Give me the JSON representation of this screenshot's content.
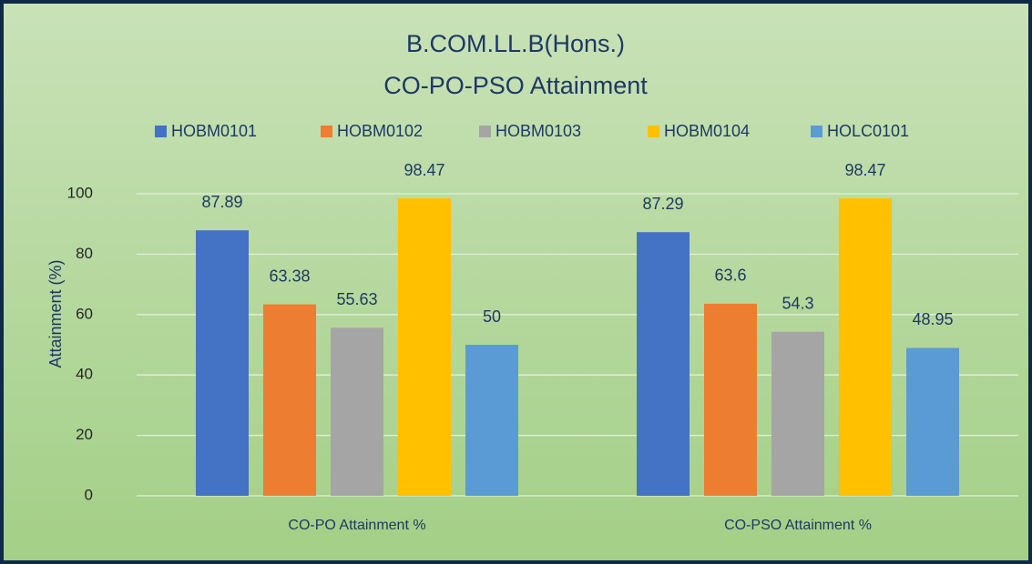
{
  "chart_data": {
    "type": "bar",
    "title": "B.COM.LL.B(Hons.)",
    "subtitle": "CO-PO-PSO Attainment",
    "y_label": "Attainment (%)",
    "categories": [
      "CO-PO Attainment %",
      "CO-PSO Attainment %"
    ],
    "series": [
      {
        "name": "HOBM0101",
        "color": "#4472c4",
        "values": [
          87.89,
          87.29
        ]
      },
      {
        "name": "HOBM0102",
        "color": "#ed7d31",
        "values": [
          63.38,
          63.6
        ]
      },
      {
        "name": "HOBM0103",
        "color": "#a5a5a5",
        "values": [
          55.63,
          54.3
        ]
      },
      {
        "name": "HOBM0104",
        "color": "#ffc000",
        "values": [
          98.47,
          98.47
        ]
      },
      {
        "name": "HOLC0101",
        "color": "#5b9bd5",
        "values": [
          50,
          48.95
        ]
      }
    ],
    "ylim": [
      0,
      100
    ],
    "yticks": [
      0,
      20,
      40,
      60,
      80,
      100
    ],
    "grid": true,
    "legend": "top"
  }
}
